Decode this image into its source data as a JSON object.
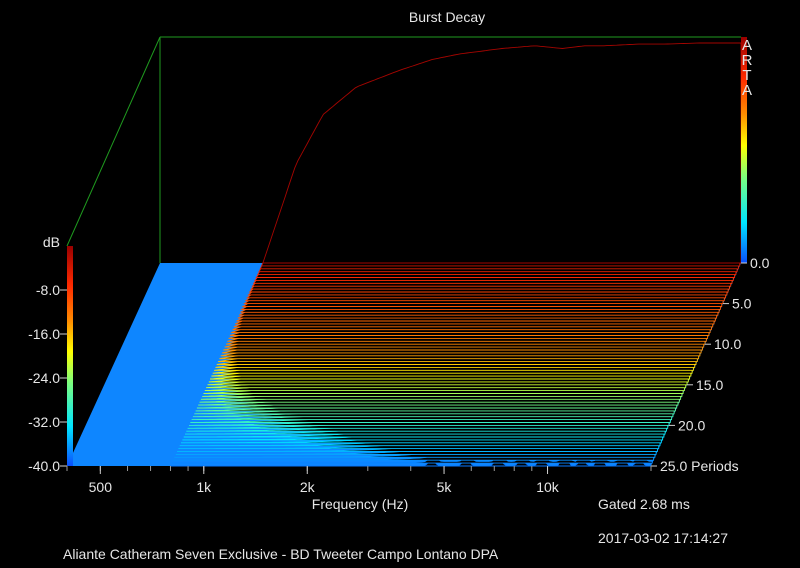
{
  "chart_data": {
    "type": "waterfall",
    "title": "Burst Decay",
    "brand": "ARTA",
    "xlabel": "Frequency (Hz)",
    "ylabel": "dB",
    "zlabel": "Periods",
    "x_scale": "log",
    "xlim": [
      400,
      20000
    ],
    "ylim": [
      -40,
      0
    ],
    "zlim": [
      0,
      25
    ],
    "x_ticks": [
      500,
      1000,
      2000,
      5000,
      10000
    ],
    "x_tick_labels": [
      "500",
      "1k",
      "2k",
      "5k",
      "10k"
    ],
    "y_ticks": [
      -8,
      -16,
      -24,
      -32,
      -40
    ],
    "y_tick_labels": [
      "-8.0",
      "-16.0",
      "-24.0",
      "-32.0",
      "-40.0"
    ],
    "z_ticks": [
      0,
      5,
      10,
      15,
      20,
      25
    ],
    "z_tick_labels": [
      "0.0",
      "5.0",
      "10.0",
      "15.0",
      "20.0",
      "25.0 Periods"
    ],
    "gate_text": "Gated 2.68 ms",
    "timestamp": "2017-03-02  17:14:27",
    "footer_text": "Aliante Catheram Seven Exclusive - BD Tweeter Campo Lontano      DPA",
    "colorbar_colors": [
      "#0a4fff",
      "#00e5ff",
      "#7dff7d",
      "#ffff00",
      "#ff8c00",
      "#ff2a00",
      "#9a0000"
    ],
    "series": [
      {
        "name": "0.0",
        "x": [
          800,
          1000,
          1200,
          1500,
          2000,
          2500,
          3000,
          4000,
          5000,
          6000,
          7000,
          8000,
          10000,
          12000,
          15000,
          20000
        ],
        "y": [
          -40,
          -22,
          -13,
          -8,
          -5,
          -3,
          -2,
          -1,
          -0.5,
          -1,
          -0.5,
          -0.5,
          -0.2,
          -0.2,
          0,
          0
        ]
      },
      {
        "name": "25.0",
        "x": [
          800,
          1000,
          2000,
          5000,
          10000,
          20000
        ],
        "y": [
          -40,
          -40,
          -40,
          -40,
          -40,
          -40
        ]
      }
    ]
  }
}
